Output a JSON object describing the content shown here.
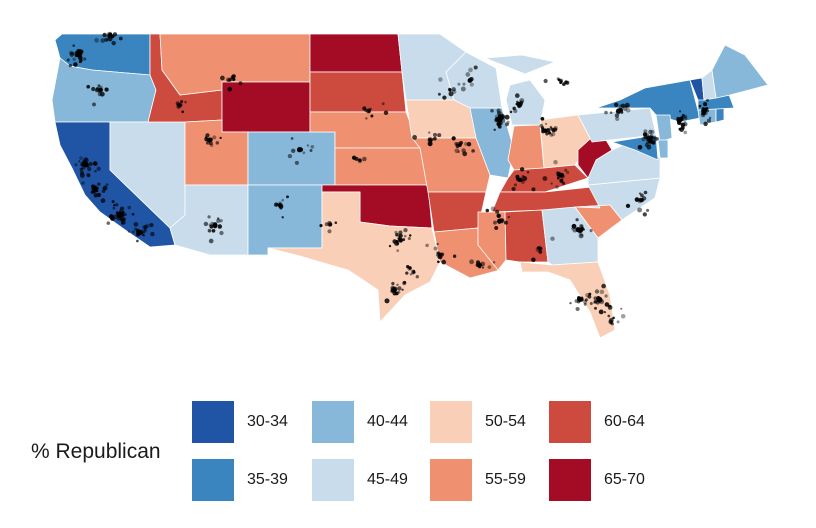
{
  "legend": {
    "title": "% Republican",
    "bins": [
      {
        "label": "30-34",
        "color": "#2054a4"
      },
      {
        "label": "35-39",
        "color": "#3a85bf"
      },
      {
        "label": "40-44",
        "color": "#87b8d9"
      },
      {
        "label": "45-49",
        "color": "#c8dcec"
      },
      {
        "label": "50-54",
        "color": "#f9cfb7"
      },
      {
        "label": "55-59",
        "color": "#ef9070"
      },
      {
        "label": "60-64",
        "color": "#cc4a3e"
      },
      {
        "label": "65-70",
        "color": "#a40b25"
      }
    ]
  },
  "map": {
    "projection": "albers-usa-contiguous",
    "points": "black semi-transparent dots marking population centers",
    "states": [
      {
        "name": "WA",
        "bin": 1
      },
      {
        "name": "OR",
        "bin": 2
      },
      {
        "name": "CA",
        "bin": 0
      },
      {
        "name": "NV",
        "bin": 3
      },
      {
        "name": "ID",
        "bin": 6
      },
      {
        "name": "MT",
        "bin": 5
      },
      {
        "name": "WY",
        "bin": 7
      },
      {
        "name": "UT",
        "bin": 5
      },
      {
        "name": "CO",
        "bin": 2
      },
      {
        "name": "AZ",
        "bin": 3
      },
      {
        "name": "NM",
        "bin": 2
      },
      {
        "name": "ND",
        "bin": 7
      },
      {
        "name": "SD",
        "bin": 6
      },
      {
        "name": "NE",
        "bin": 5
      },
      {
        "name": "KS",
        "bin": 5
      },
      {
        "name": "OK",
        "bin": 7
      },
      {
        "name": "TX",
        "bin": 4
      },
      {
        "name": "MN",
        "bin": 3
      },
      {
        "name": "IA",
        "bin": 4
      },
      {
        "name": "MO",
        "bin": 5
      },
      {
        "name": "AR",
        "bin": 6
      },
      {
        "name": "LA",
        "bin": 5
      },
      {
        "name": "WI",
        "bin": 3
      },
      {
        "name": "IL",
        "bin": 2
      },
      {
        "name": "MI",
        "bin": 3
      },
      {
        "name": "IN",
        "bin": 5
      },
      {
        "name": "OH",
        "bin": 4
      },
      {
        "name": "KY",
        "bin": 6
      },
      {
        "name": "TN",
        "bin": 6
      },
      {
        "name": "MS",
        "bin": 5
      },
      {
        "name": "AL",
        "bin": 6
      },
      {
        "name": "GA",
        "bin": 3
      },
      {
        "name": "FL",
        "bin": 4
      },
      {
        "name": "SC",
        "bin": 5
      },
      {
        "name": "NC",
        "bin": 3
      },
      {
        "name": "VA",
        "bin": 3
      },
      {
        "name": "WV",
        "bin": 7
      },
      {
        "name": "PA",
        "bin": 3
      },
      {
        "name": "NY",
        "bin": 1
      },
      {
        "name": "NJ",
        "bin": 2
      },
      {
        "name": "DE",
        "bin": 2
      },
      {
        "name": "MD",
        "bin": 1
      },
      {
        "name": "CT",
        "bin": 2
      },
      {
        "name": "RI",
        "bin": 1
      },
      {
        "name": "MA",
        "bin": 1
      },
      {
        "name": "VT",
        "bin": 0
      },
      {
        "name": "NH",
        "bin": 3
      },
      {
        "name": "ME",
        "bin": 2
      }
    ]
  }
}
